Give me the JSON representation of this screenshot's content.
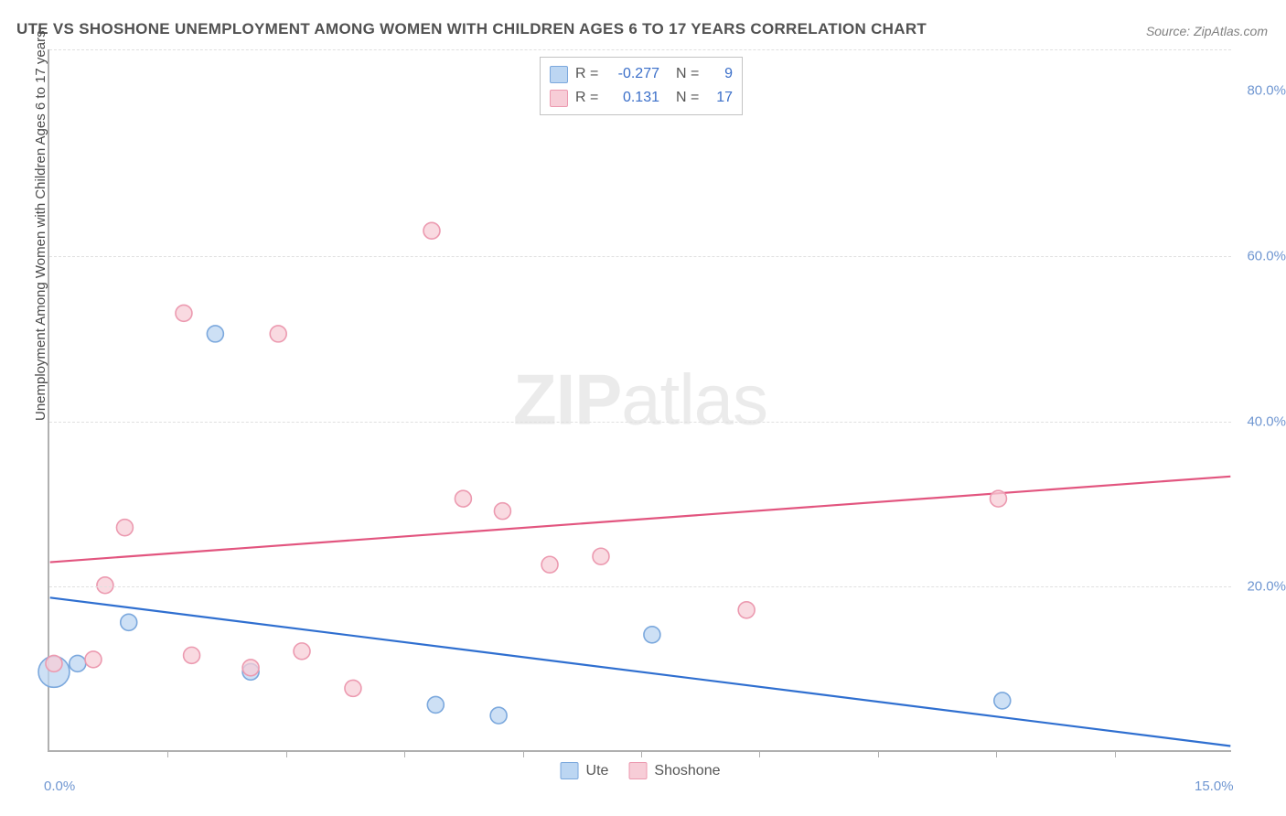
{
  "title": "UTE VS SHOSHONE UNEMPLOYMENT AMONG WOMEN WITH CHILDREN AGES 6 TO 17 YEARS CORRELATION CHART",
  "source": "Source: ZipAtlas.com",
  "ylabel": "Unemployment Among Women with Children Ages 6 to 17 years",
  "watermark_bold": "ZIP",
  "watermark_light": "atlas",
  "chart": {
    "type": "scatter",
    "xlim": [
      0,
      15
    ],
    "ylim": [
      0,
      85
    ],
    "x_ticks_minor": [
      1.5,
      3.0,
      4.5,
      6.0,
      7.5,
      9.0,
      10.5,
      12.0,
      13.5
    ],
    "x_tick_labels": [
      {
        "v": 0,
        "label": "0.0%"
      },
      {
        "v": 15,
        "label": "15.0%"
      }
    ],
    "y_gridlines": [
      20,
      40,
      60,
      85
    ],
    "y_tick_labels": [
      {
        "v": 20,
        "label": "20.0%"
      },
      {
        "v": 40,
        "label": "40.0%"
      },
      {
        "v": 60,
        "label": "60.0%"
      },
      {
        "v": 80,
        "label": "80.0%"
      }
    ],
    "background_color": "#ffffff",
    "grid_color": "#e0e0e0",
    "axis_color": "#b0b0b0",
    "marker_radius": 9,
    "marker_stroke_width": 1.6,
    "trend_stroke_width": 2.2,
    "series": [
      {
        "name": "Ute",
        "color_fill": "#bcd6f2",
        "color_stroke": "#7ba8dd",
        "trend_color": "#2f6fd0",
        "R": "-0.277",
        "N": "9",
        "trend": {
          "x1": 0,
          "y1": 18.5,
          "x2": 15,
          "y2": 0.5
        },
        "points": [
          {
            "x": 0.05,
            "y": 9.5,
            "r": 17
          },
          {
            "x": 0.35,
            "y": 10.5
          },
          {
            "x": 1.0,
            "y": 15.5
          },
          {
            "x": 2.1,
            "y": 50.5
          },
          {
            "x": 2.55,
            "y": 9.5
          },
          {
            "x": 4.9,
            "y": 5.5
          },
          {
            "x": 5.7,
            "y": 4.2
          },
          {
            "x": 7.65,
            "y": 14.0
          },
          {
            "x": 12.1,
            "y": 6.0
          }
        ]
      },
      {
        "name": "Shoshone",
        "color_fill": "#f7cdd7",
        "color_stroke": "#ec9ab0",
        "trend_color": "#e2557f",
        "R": "0.131",
        "N": "17",
        "trend": {
          "x1": 0,
          "y1": 22.8,
          "x2": 15,
          "y2": 33.2
        },
        "points": [
          {
            "x": 0.05,
            "y": 10.5
          },
          {
            "x": 0.55,
            "y": 11.0
          },
          {
            "x": 0.7,
            "y": 20.0
          },
          {
            "x": 0.95,
            "y": 27.0
          },
          {
            "x": 1.7,
            "y": 53.0
          },
          {
            "x": 1.8,
            "y": 11.5
          },
          {
            "x": 2.55,
            "y": 10.0
          },
          {
            "x": 2.9,
            "y": 50.5
          },
          {
            "x": 3.2,
            "y": 12.0
          },
          {
            "x": 3.85,
            "y": 7.5
          },
          {
            "x": 4.85,
            "y": 63.0
          },
          {
            "x": 5.25,
            "y": 30.5
          },
          {
            "x": 5.75,
            "y": 29.0
          },
          {
            "x": 6.35,
            "y": 22.5
          },
          {
            "x": 7.0,
            "y": 23.5
          },
          {
            "x": 8.85,
            "y": 17.0
          },
          {
            "x": 12.05,
            "y": 30.5
          }
        ]
      }
    ]
  },
  "legend_labels": {
    "r_prefix": "R =",
    "n_prefix": "N ="
  }
}
